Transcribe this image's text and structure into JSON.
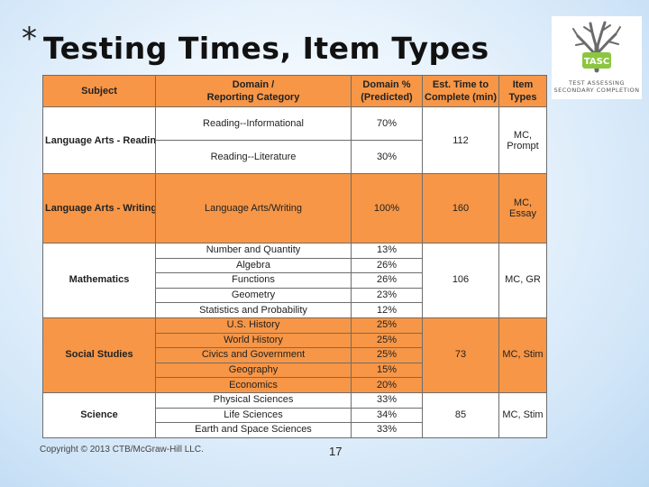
{
  "slide": {
    "bullet": "*",
    "title": "Testing Times, Item Types",
    "footer": "Copyright © 2013 CTB/McGraw-Hill LLC.",
    "page_number": "17"
  },
  "logo": {
    "badge": "TASC",
    "line1": "TEST ASSESSING",
    "line2": "SECONDARY COMPLETION",
    "colors": {
      "tree": "#6b6b6b",
      "badge": "#8cc63f"
    }
  },
  "colors": {
    "orange": "#f79646",
    "white": "#ffffff",
    "border": "#6e6e6e"
  },
  "table": {
    "headers": {
      "subject": "Subject",
      "domain_line1": "Domain /",
      "domain_line2": "Reporting Category",
      "pct_line1": "Domain %",
      "pct_line2": "(Predicted)",
      "time_line1": "Est. Time to",
      "time_line2": "Complete (min)",
      "types_line1": "Item",
      "types_line2": "Types"
    },
    "reading": {
      "subject": "Language Arts - Reading",
      "domains": [
        {
          "name": "Reading--Informational",
          "pct": "70%"
        },
        {
          "name": "Reading--Literature",
          "pct": "30%"
        }
      ],
      "time": "112",
      "types_line1": "MC,",
      "types_line2": "Prompt"
    },
    "writing": {
      "subject": "Language Arts - Writing",
      "domains": [
        {
          "name": "Language Arts/Writing",
          "pct": "100%"
        }
      ],
      "time": "160",
      "types_line1": "MC,",
      "types_line2": "Essay"
    },
    "math": {
      "subject": "Mathematics",
      "domains": [
        {
          "name": "Number and Quantity",
          "pct": "13%"
        },
        {
          "name": "Algebra",
          "pct": "26%"
        },
        {
          "name": "Functions",
          "pct": "26%"
        },
        {
          "name": "Geometry",
          "pct": "23%"
        },
        {
          "name": "Statistics and Probability",
          "pct": "12%"
        }
      ],
      "time": "106",
      "types": "MC, GR"
    },
    "social": {
      "subject": "Social Studies",
      "domains": [
        {
          "name": "U.S. History",
          "pct": "25%"
        },
        {
          "name": "World History",
          "pct": "25%"
        },
        {
          "name": "Civics and Government",
          "pct": "25%"
        },
        {
          "name": "Geography",
          "pct": "15%"
        },
        {
          "name": "Economics",
          "pct": "20%"
        }
      ],
      "time": "73",
      "types": "MC, Stim"
    },
    "science": {
      "subject": "Science",
      "domains": [
        {
          "name": "Physical Sciences",
          "pct": "33%"
        },
        {
          "name": "Life Sciences",
          "pct": "34%"
        },
        {
          "name": "Earth and Space Sciences",
          "pct": "33%"
        }
      ],
      "time": "85",
      "types": "MC, Stim"
    }
  }
}
